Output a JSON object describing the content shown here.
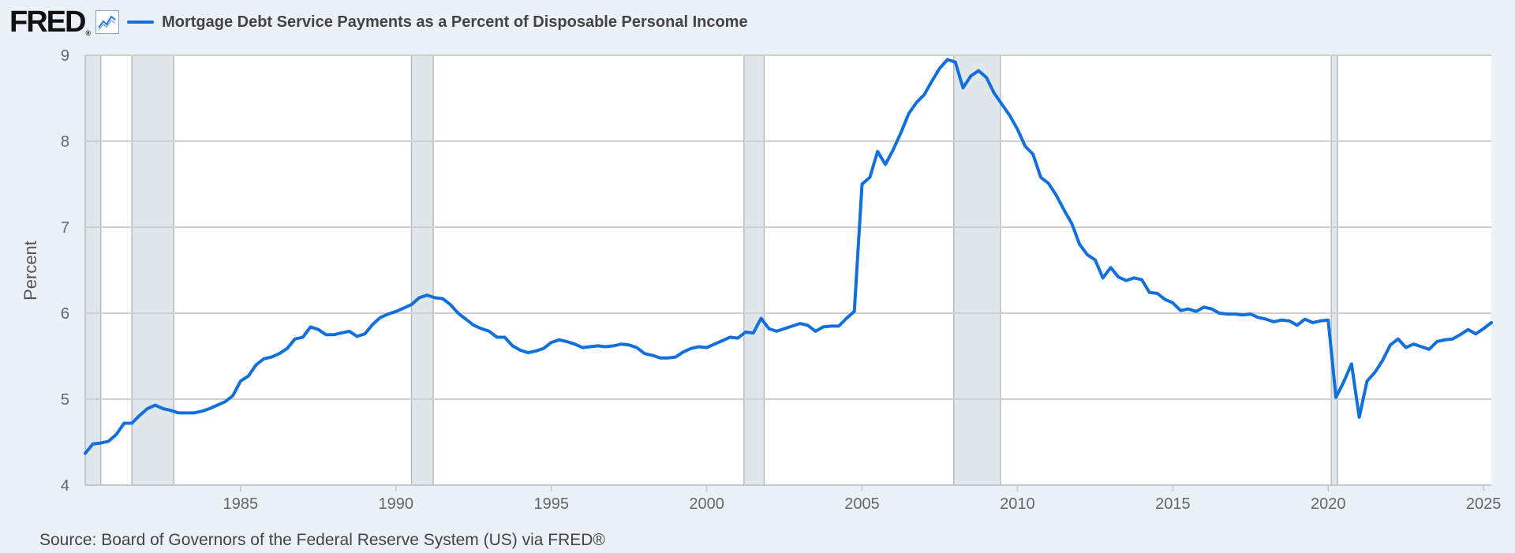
{
  "header": {
    "logo_text": "FRED",
    "logo_mark": "®",
    "graph_icon": "line-graph-icon",
    "series_label": "Mortgage Debt Service Payments as a Percent of Disposable Personal Income"
  },
  "footer": {
    "source": "Source: Board of Governors of the Federal Reserve System (US) via FRED®"
  },
  "colors": {
    "background": "#eaf1f8",
    "plot_background": "#ffffff",
    "line": "#1170dc",
    "recession_shading": "#e1e6eb",
    "grid": "#d0d0d0"
  },
  "chart_data": {
    "type": "line",
    "title": "",
    "xlabel": "",
    "ylabel": "Percent",
    "xlim": [
      1980.0,
      2025.25
    ],
    "ylim": [
      4,
      9
    ],
    "xticks": [
      1985,
      1990,
      1995,
      2000,
      2005,
      2010,
      2015,
      2020,
      2025
    ],
    "yticks": [
      4,
      5,
      6,
      7,
      8,
      9
    ],
    "grid": "horizontal",
    "legend": "top-left",
    "recessions": [
      [
        1980.0,
        1980.5
      ],
      [
        1981.5,
        1982.85
      ],
      [
        1990.5,
        1991.2
      ],
      [
        2001.2,
        2001.85
      ],
      [
        2007.95,
        2009.45
      ],
      [
        2020.1,
        2020.3
      ]
    ],
    "series": [
      {
        "name": "Mortgage Debt Service Payments as a Percent of Disposable Personal Income",
        "x": [
          1980.0,
          1980.25,
          1980.5,
          1980.75,
          1981.0,
          1981.25,
          1981.5,
          1981.75,
          1982.0,
          1982.25,
          1982.5,
          1982.75,
          1983.0,
          1983.25,
          1983.5,
          1983.75,
          1984.0,
          1984.25,
          1984.5,
          1984.75,
          1985.0,
          1985.25,
          1985.5,
          1985.75,
          1986.0,
          1986.25,
          1986.5,
          1986.75,
          1987.0,
          1987.25,
          1987.5,
          1987.75,
          1988.0,
          1988.25,
          1988.5,
          1988.75,
          1989.0,
          1989.25,
          1989.5,
          1989.75,
          1990.0,
          1990.25,
          1990.5,
          1990.75,
          1991.0,
          1991.25,
          1991.5,
          1991.75,
          1992.0,
          1992.25,
          1992.5,
          1992.75,
          1993.0,
          1993.25,
          1993.5,
          1993.75,
          1994.0,
          1994.25,
          1994.5,
          1994.75,
          1995.0,
          1995.25,
          1995.5,
          1995.75,
          1996.0,
          1996.25,
          1996.5,
          1996.75,
          1997.0,
          1997.25,
          1997.5,
          1997.75,
          1998.0,
          1998.25,
          1998.5,
          1998.75,
          1999.0,
          1999.25,
          1999.5,
          1999.75,
          2000.0,
          2000.25,
          2000.5,
          2000.75,
          2001.0,
          2001.25,
          2001.5,
          2001.75,
          2002.0,
          2002.25,
          2002.5,
          2002.75,
          2003.0,
          2003.25,
          2003.5,
          2003.75,
          2004.0,
          2004.25,
          2004.5,
          2004.75,
          2005.0,
          2005.25,
          2005.5,
          2005.75,
          2006.0,
          2006.25,
          2006.5,
          2006.75,
          2007.0,
          2007.25,
          2007.5,
          2007.75,
          2008.0,
          2008.25,
          2008.5,
          2008.75,
          2009.0,
          2009.25,
          2009.5,
          2009.75,
          2010.0,
          2010.25,
          2010.5,
          2010.75,
          2011.0,
          2011.25,
          2011.5,
          2011.75,
          2012.0,
          2012.25,
          2012.5,
          2012.75,
          2013.0,
          2013.25,
          2013.5,
          2013.75,
          2014.0,
          2014.25,
          2014.5,
          2014.75,
          2015.0,
          2015.25,
          2015.5,
          2015.75,
          2016.0,
          2016.25,
          2016.5,
          2016.75,
          2017.0,
          2017.25,
          2017.5,
          2017.75,
          2018.0,
          2018.25,
          2018.5,
          2018.75,
          2019.0,
          2019.25,
          2019.5,
          2019.75,
          2020.0,
          2020.25,
          2020.5,
          2020.75,
          2021.0,
          2021.25,
          2021.5,
          2021.75,
          2022.0,
          2022.25,
          2022.5,
          2022.75,
          2023.0,
          2023.25,
          2023.5,
          2023.75,
          2024.0,
          2024.25,
          2024.5,
          2024.75,
          2025.0,
          2025.25
        ],
        "values": [
          4.37,
          4.48,
          4.49,
          4.51,
          4.59,
          4.72,
          4.72,
          4.81,
          4.89,
          4.93,
          4.89,
          4.87,
          4.84,
          4.84,
          4.84,
          4.86,
          4.89,
          4.93,
          4.97,
          5.04,
          5.21,
          5.27,
          5.4,
          5.47,
          5.49,
          5.53,
          5.59,
          5.7,
          5.72,
          5.84,
          5.81,
          5.75,
          5.75,
          5.77,
          5.79,
          5.73,
          5.76,
          5.87,
          5.95,
          5.99,
          6.02,
          6.06,
          6.1,
          6.18,
          6.21,
          6.18,
          6.17,
          6.1,
          6.0,
          5.93,
          5.86,
          5.82,
          5.79,
          5.72,
          5.72,
          5.62,
          5.57,
          5.54,
          5.56,
          5.59,
          5.66,
          5.69,
          5.67,
          5.64,
          5.6,
          5.61,
          5.62,
          5.61,
          5.62,
          5.64,
          5.63,
          5.6,
          5.53,
          5.51,
          5.48,
          5.48,
          5.49,
          5.55,
          5.59,
          5.61,
          5.6,
          5.64,
          5.68,
          5.72,
          5.71,
          5.78,
          5.77,
          5.94,
          5.82,
          5.79,
          5.82,
          5.85,
          5.88,
          5.86,
          5.79,
          5.84,
          5.85,
          5.85,
          5.94,
          6.02,
          7.5,
          7.58,
          7.88,
          7.73,
          7.9,
          8.1,
          8.32,
          8.45,
          8.54,
          8.7,
          8.85,
          8.95,
          8.92,
          8.62,
          8.76,
          8.82,
          8.74,
          8.56,
          8.43,
          8.3,
          8.14,
          7.94,
          7.85,
          7.58,
          7.51,
          7.37,
          7.2,
          7.04,
          6.8,
          6.68,
          6.62,
          6.41,
          6.53,
          6.42,
          6.38,
          6.41,
          6.39,
          6.24,
          6.23,
          6.16,
          6.12,
          6.03,
          6.05,
          6.02,
          6.07,
          6.05,
          6.0,
          5.99,
          5.99,
          5.98,
          5.99,
          5.95,
          5.93,
          5.9,
          5.92,
          5.91,
          5.86,
          5.93,
          5.89,
          5.91,
          5.92,
          5.02,
          5.2,
          5.41,
          4.79,
          5.21,
          5.31,
          5.45,
          5.63,
          5.7,
          5.6,
          5.64,
          5.61,
          5.58,
          5.67,
          5.69,
          5.7,
          5.75,
          5.81,
          5.76,
          5.82,
          5.89
        ]
      }
    ]
  }
}
